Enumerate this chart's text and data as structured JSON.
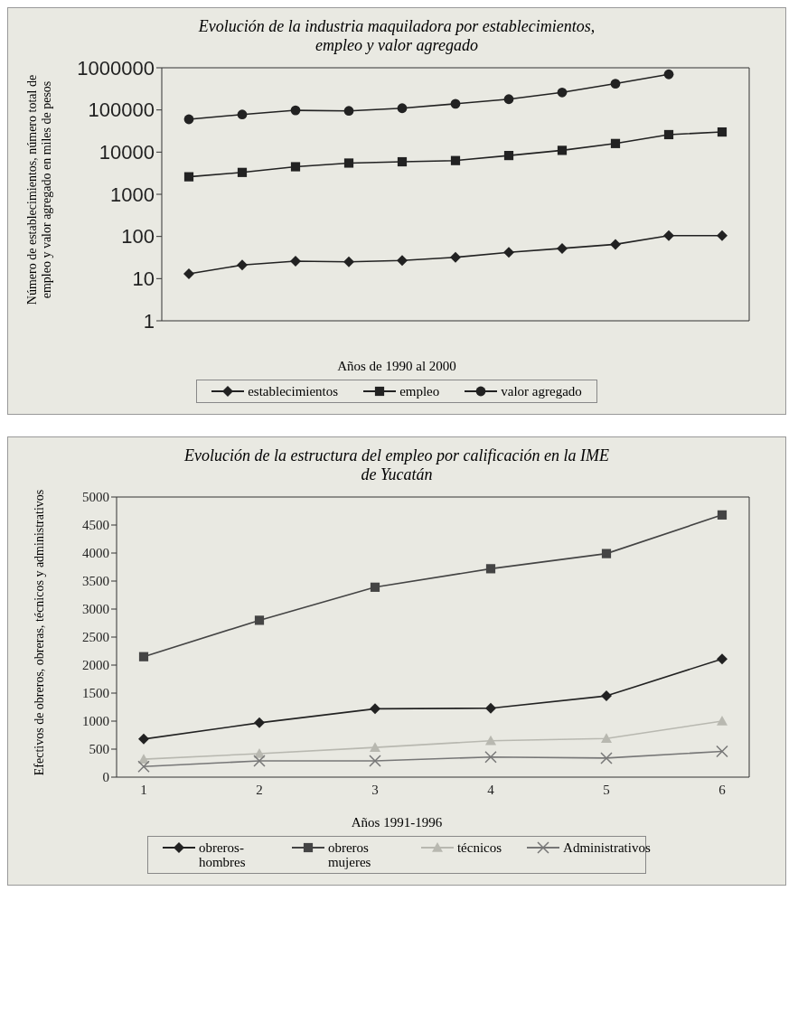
{
  "chart_data": [
    {
      "type": "line",
      "title": "Evolución de la industria maquiladora por establecimientos, empleo y valor agregado",
      "xlabel": "Años de 1990 al 2000",
      "ylabel": "Número de establecimientos, número total de empleo y valor agregado en miles de pesos",
      "categories": [
        null,
        null,
        null,
        null,
        null,
        null,
        null,
        null,
        null,
        null,
        null
      ],
      "series": [
        {
          "name": "establecimientos",
          "color": "#222222",
          "marker": "diamond",
          "values": [
            13,
            21,
            26,
            25,
            27,
            32,
            42,
            52,
            65,
            105,
            105
          ]
        },
        {
          "name": "empleo",
          "color": "#222222",
          "marker": "square",
          "values": [
            2600,
            3300,
            4500,
            5500,
            5900,
            6300,
            8300,
            11000,
            16000,
            26000,
            30000
          ]
        },
        {
          "name": "valor agregado",
          "color": "#222222",
          "marker": "circle",
          "values": [
            60000,
            78000,
            98000,
            95000,
            110000,
            140000,
            180000,
            260000,
            420000,
            700000,
            null
          ]
        }
      ],
      "log": "y",
      "ylim": [
        1,
        1000000
      ],
      "yticks": [
        1,
        10,
        100,
        1000,
        10000,
        100000,
        1000000
      ],
      "tick_labels": "y",
      "legend": "bottom"
    },
    {
      "type": "line",
      "title": "Evolución de la estructura del empleo por calificación en la IME de Yucatán",
      "xlabel": "Años 1991-1996",
      "ylabel": "Efectivos de obreros, obreras, técnicos y administrativos",
      "categories": [
        "1",
        "2",
        "3",
        "4",
        "5",
        "6"
      ],
      "series": [
        {
          "name": "obreros-hombres",
          "color": "#222222",
          "marker": "diamond",
          "values": [
            680,
            970,
            1220,
            1230,
            1450,
            2110
          ]
        },
        {
          "name": "obreros mujeres",
          "color": "#444444",
          "marker": "square",
          "values": [
            2150,
            2800,
            3390,
            3720,
            3990,
            4680
          ]
        },
        {
          "name": "técnicos",
          "color": "#b8b8b0",
          "marker": "triangle",
          "values": [
            320,
            420,
            530,
            650,
            690,
            1000
          ]
        },
        {
          "name": "Administrativos",
          "color": "#777777",
          "marker": "cross",
          "values": [
            190,
            290,
            290,
            360,
            340,
            460
          ]
        }
      ],
      "ylim": [
        0,
        5000
      ],
      "yticks": [
        0,
        500,
        1000,
        1500,
        2000,
        2500,
        3000,
        3500,
        4000,
        4500,
        5000
      ],
      "legend": "bottom"
    }
  ]
}
